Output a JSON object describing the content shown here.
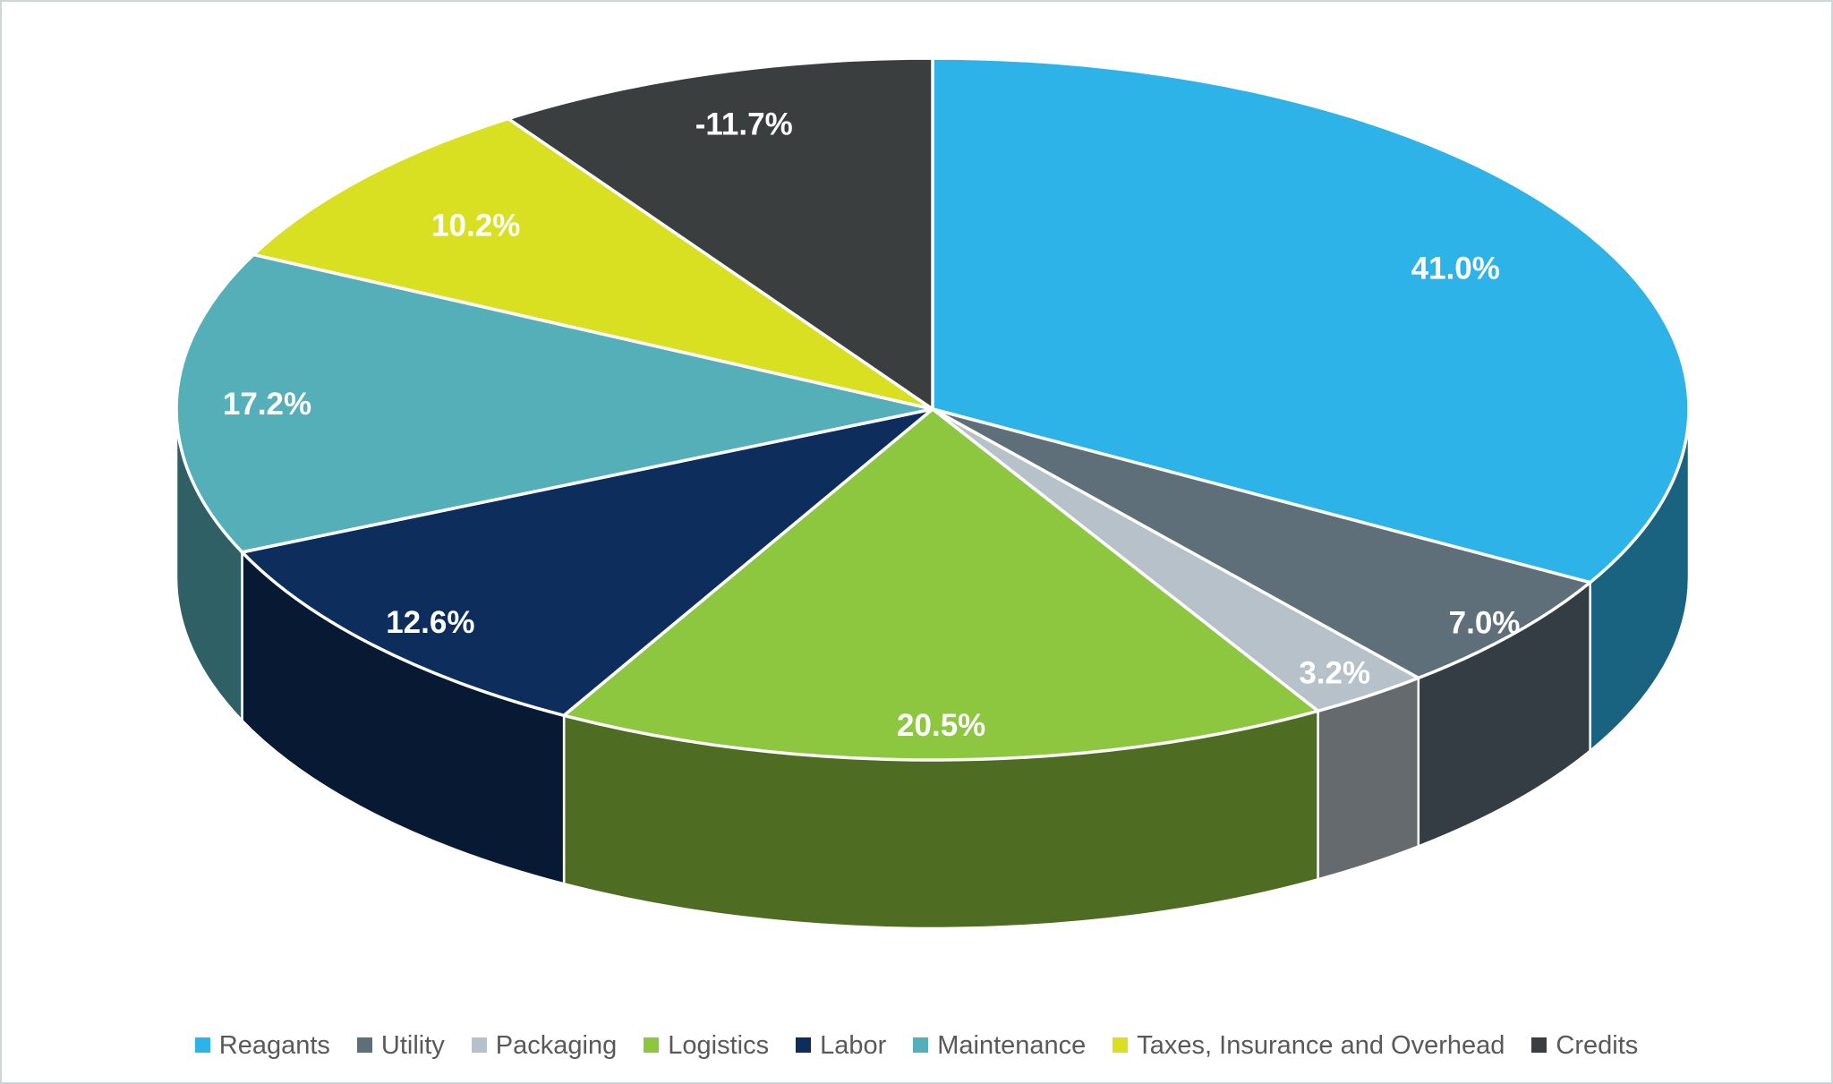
{
  "chart_data": {
    "type": "pie",
    "style": "3d",
    "title": "",
    "legend_position": "bottom",
    "start_angle_deg": 0,
    "direction": "clockwise",
    "note": "Slice angles are proportional to absolute values; Credits is a negative value plotted by magnitude.",
    "label_color": "#FFFFFF",
    "legend_text_color": "#595959",
    "slices": [
      {
        "label": "Reagants",
        "value": 41.0,
        "display": "41.0%",
        "color": "#2DB3E8"
      },
      {
        "label": "Utility",
        "value": 7.0,
        "display": "7.0%",
        "color": "#5F6F79"
      },
      {
        "label": "Packaging",
        "value": 3.2,
        "display": "3.2%",
        "color": "#B7C1CA"
      },
      {
        "label": "Logistics",
        "value": 20.5,
        "display": "20.5%",
        "color": "#8DC63F"
      },
      {
        "label": "Labor",
        "value": 12.6,
        "display": "12.6%",
        "color": "#0D2E5C"
      },
      {
        "label": "Maintenance",
        "value": 17.2,
        "display": "17.2%",
        "color": "#55AFB9"
      },
      {
        "label": "Taxes, Insurance and Overhead",
        "value": 10.2,
        "display": "10.2%",
        "color": "#D9E021"
      },
      {
        "label": "Credits",
        "value": -11.7,
        "display": "-11.7%",
        "color": "#3A3E3F"
      }
    ]
  }
}
